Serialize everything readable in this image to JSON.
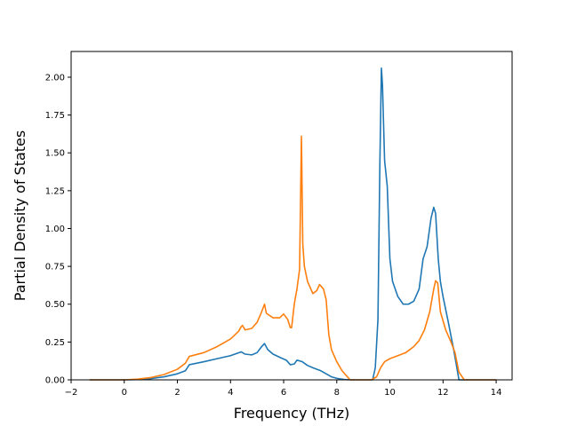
{
  "chart_data": {
    "type": "line",
    "title": "",
    "xlabel": "Frequency (THz)",
    "ylabel": "Partial Density of States",
    "xlim": [
      -2,
      14.6
    ],
    "ylim": [
      0,
      2.17
    ],
    "xticks": [
      -2,
      0,
      2,
      4,
      6,
      8,
      10,
      12,
      14
    ],
    "xtick_labels": [
      "−2",
      "0",
      "2",
      "4",
      "6",
      "8",
      "10",
      "12",
      "14"
    ],
    "yticks": [
      0,
      0.25,
      0.5,
      0.75,
      1.0,
      1.25,
      1.5,
      1.75,
      2.0
    ],
    "ytick_labels": [
      "0.00",
      "0.25",
      "0.50",
      "0.75",
      "1.00",
      "1.25",
      "1.50",
      "1.75",
      "2.00"
    ],
    "grid": false,
    "legend": false,
    "series": [
      {
        "color": "#1f77b4",
        "x": [
          -1.3,
          0.0,
          0.5,
          1.0,
          1.5,
          2.0,
          2.3,
          2.45,
          3.0,
          3.5,
          4.0,
          4.4,
          4.55,
          4.8,
          5.0,
          5.15,
          5.28,
          5.4,
          5.6,
          5.9,
          6.1,
          6.25,
          6.4,
          6.5,
          6.7,
          6.9,
          7.1,
          7.4,
          7.6,
          7.8,
          8.0,
          8.3,
          8.6,
          9.0,
          9.35,
          9.45,
          9.55,
          9.62,
          9.68,
          9.72,
          9.8,
          9.9,
          10.0,
          10.1,
          10.3,
          10.5,
          10.7,
          10.9,
          11.1,
          11.25,
          11.4,
          11.55,
          11.65,
          11.72,
          11.82,
          11.9,
          12.0,
          12.2,
          12.4,
          12.55,
          12.6,
          12.8,
          13.5,
          14.0
        ],
        "y": [
          0.0,
          0.0,
          0.002,
          0.008,
          0.02,
          0.04,
          0.06,
          0.1,
          0.12,
          0.14,
          0.16,
          0.185,
          0.17,
          0.165,
          0.18,
          0.215,
          0.24,
          0.2,
          0.17,
          0.145,
          0.13,
          0.1,
          0.105,
          0.13,
          0.12,
          0.095,
          0.08,
          0.06,
          0.04,
          0.02,
          0.01,
          0.002,
          0.0,
          0.0,
          0.0,
          0.08,
          0.4,
          1.4,
          2.06,
          1.95,
          1.45,
          1.28,
          0.8,
          0.65,
          0.55,
          0.5,
          0.5,
          0.52,
          0.6,
          0.8,
          0.88,
          1.07,
          1.14,
          1.1,
          0.8,
          0.65,
          0.55,
          0.38,
          0.2,
          0.05,
          0.0,
          0.0,
          0.0,
          0.0
        ]
      },
      {
        "color": "#ff7f0e",
        "x": [
          -1.3,
          0.0,
          0.5,
          1.0,
          1.5,
          2.0,
          2.3,
          2.45,
          3.0,
          3.5,
          4.0,
          4.3,
          4.4,
          4.45,
          4.55,
          4.8,
          5.0,
          5.15,
          5.28,
          5.35,
          5.6,
          5.85,
          6.0,
          6.15,
          6.25,
          6.3,
          6.4,
          6.5,
          6.6,
          6.67,
          6.72,
          6.78,
          6.9,
          7.1,
          7.25,
          7.35,
          7.5,
          7.6,
          7.7,
          7.8,
          8.0,
          8.2,
          8.5,
          9.0,
          9.3,
          9.5,
          9.65,
          9.8,
          10.0,
          10.3,
          10.6,
          10.9,
          11.1,
          11.3,
          11.5,
          11.65,
          11.72,
          11.8,
          11.9,
          12.1,
          12.3,
          12.45,
          12.6,
          12.8,
          13.5,
          14.0
        ],
        "y": [
          0.0,
          0.0,
          0.005,
          0.015,
          0.035,
          0.07,
          0.11,
          0.155,
          0.18,
          0.22,
          0.27,
          0.32,
          0.35,
          0.36,
          0.33,
          0.34,
          0.38,
          0.44,
          0.5,
          0.44,
          0.41,
          0.41,
          0.435,
          0.4,
          0.345,
          0.345,
          0.5,
          0.6,
          0.73,
          1.61,
          0.9,
          0.75,
          0.65,
          0.57,
          0.59,
          0.63,
          0.6,
          0.53,
          0.3,
          0.2,
          0.12,
          0.06,
          0.0,
          0.0,
          0.0,
          0.02,
          0.08,
          0.12,
          0.14,
          0.16,
          0.18,
          0.22,
          0.26,
          0.33,
          0.45,
          0.6,
          0.655,
          0.64,
          0.45,
          0.33,
          0.25,
          0.18,
          0.05,
          0.0,
          0.0,
          0.0
        ]
      }
    ]
  }
}
